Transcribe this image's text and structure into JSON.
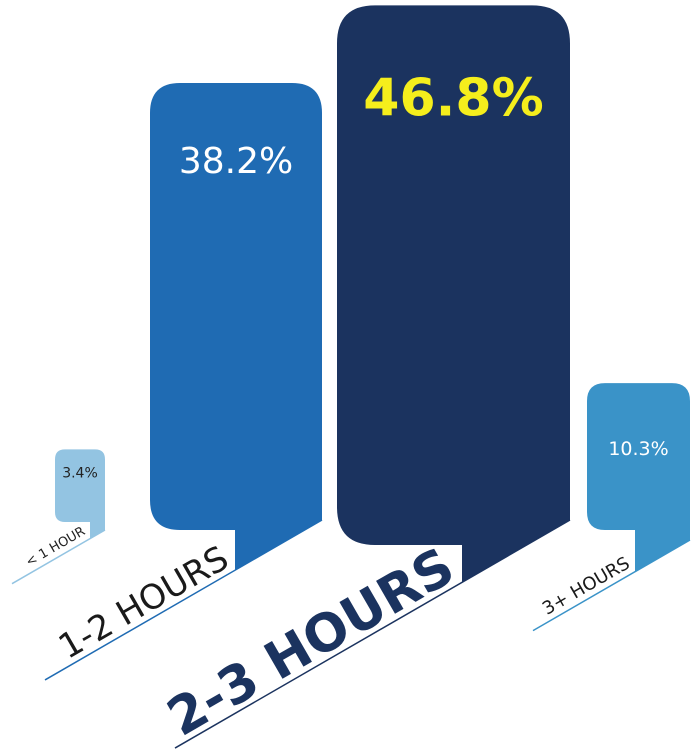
{
  "chart_data": {
    "type": "bar",
    "categories": [
      "< 1 HOUR",
      "1-2 HOURS",
      "2-3 HOURS",
      "3+ HOURS"
    ],
    "values": [
      3.4,
      38.2,
      46.8,
      10.3
    ],
    "value_labels": [
      "3.4%",
      "38.2%",
      "46.8%",
      "10.3%"
    ],
    "colors": [
      "#93c4e2",
      "#1f6bb3",
      "#1b335f",
      "#3a93c8"
    ],
    "value_label_colors": [
      "#222222",
      "#ffffff",
      "#f5ee1c",
      "#ffffff"
    ]
  }
}
